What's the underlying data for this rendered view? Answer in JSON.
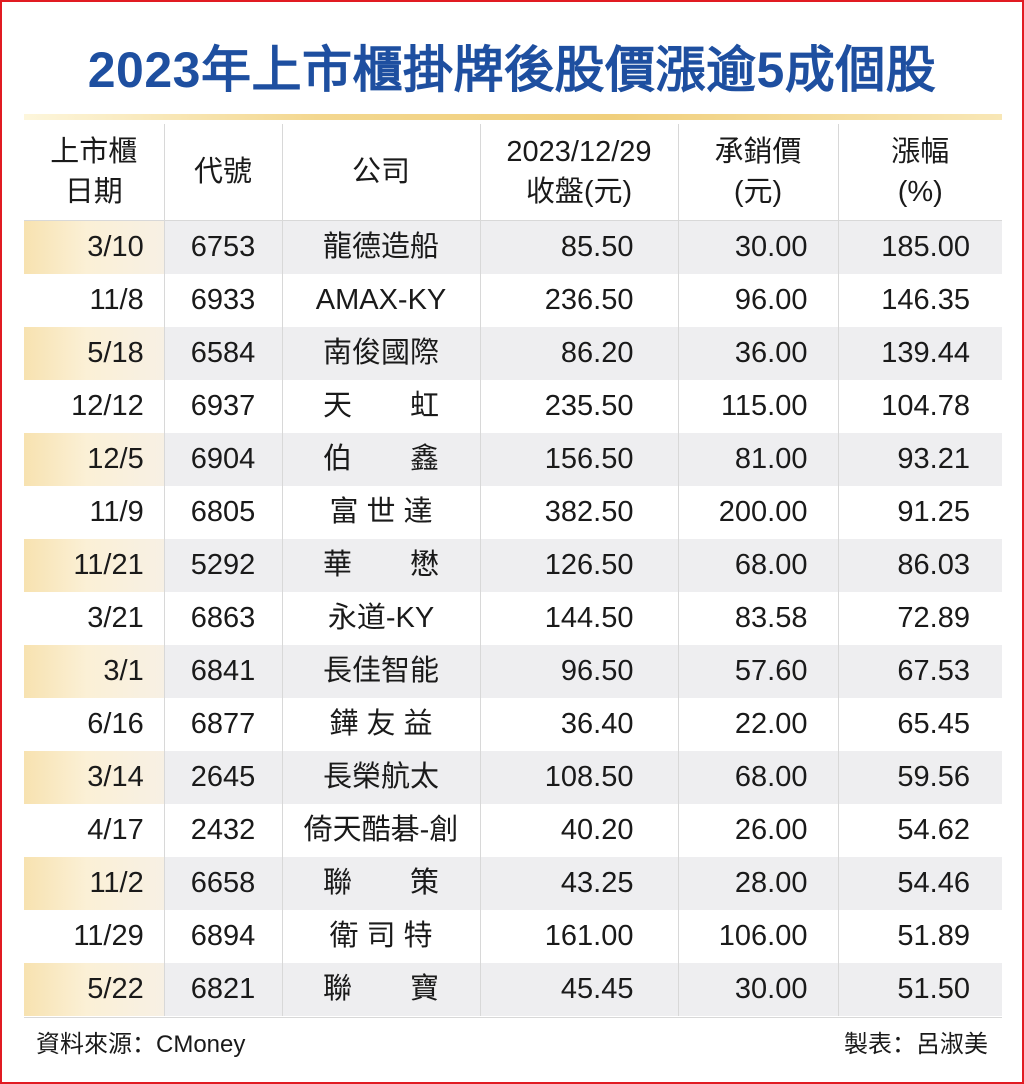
{
  "title": "2023年上市櫃掛牌後股價漲逾5成個股",
  "headers": {
    "date": [
      "上市櫃",
      "日期"
    ],
    "code": [
      "代號"
    ],
    "company": [
      "公司"
    ],
    "close": [
      "2023/12/29",
      "收盤(元)"
    ],
    "underwriting": [
      "承銷價",
      "(元)"
    ],
    "change": [
      "漲幅",
      "(%)"
    ]
  },
  "source": "資料來源：CMoney",
  "maker": "製表：呂淑美",
  "colors": {
    "title": "#1e4fa0",
    "frame": "#e11b22",
    "row_shade": "#eeeef0",
    "date_shade": "#f7e2b0"
  },
  "chart_data": {
    "type": "table",
    "title": "2023年上市櫃掛牌後股價漲逾5成個股",
    "columns": [
      "上市櫃日期",
      "代號",
      "公司",
      "2023/12/29收盤(元)",
      "承銷價(元)",
      "漲幅(%)"
    ],
    "rows": [
      {
        "date": "3/10",
        "code": "6753",
        "company": "龍德造船",
        "close": "85.50",
        "underwriting": "30.00",
        "change": "185.00"
      },
      {
        "date": "11/8",
        "code": "6933",
        "company": "AMAX-KY",
        "close": "236.50",
        "underwriting": "96.00",
        "change": "146.35"
      },
      {
        "date": "5/18",
        "code": "6584",
        "company": "南俊國際",
        "close": "86.20",
        "underwriting": "36.00",
        "change": "139.44"
      },
      {
        "date": "12/12",
        "code": "6937",
        "company": "天　　虹",
        "close": "235.50",
        "underwriting": "115.00",
        "change": "104.78"
      },
      {
        "date": "12/5",
        "code": "6904",
        "company": "伯　　鑫",
        "close": "156.50",
        "underwriting": "81.00",
        "change": "93.21"
      },
      {
        "date": "11/9",
        "code": "6805",
        "company": "富 世 達",
        "close": "382.50",
        "underwriting": "200.00",
        "change": "91.25"
      },
      {
        "date": "11/21",
        "code": "5292",
        "company": "華　　懋",
        "close": "126.50",
        "underwriting": "68.00",
        "change": "86.03"
      },
      {
        "date": "3/21",
        "code": "6863",
        "company": "永道-KY",
        "close": "144.50",
        "underwriting": "83.58",
        "change": "72.89"
      },
      {
        "date": "3/1",
        "code": "6841",
        "company": "長佳智能",
        "close": "96.50",
        "underwriting": "57.60",
        "change": "67.53"
      },
      {
        "date": "6/16",
        "code": "6877",
        "company": "鏵 友 益",
        "close": "36.40",
        "underwriting": "22.00",
        "change": "65.45"
      },
      {
        "date": "3/14",
        "code": "2645",
        "company": "長榮航太",
        "close": "108.50",
        "underwriting": "68.00",
        "change": "59.56"
      },
      {
        "date": "4/17",
        "code": "2432",
        "company": "倚天酷碁-創",
        "close": "40.20",
        "underwriting": "26.00",
        "change": "54.62"
      },
      {
        "date": "11/2",
        "code": "6658",
        "company": "聯　　策",
        "close": "43.25",
        "underwriting": "28.00",
        "change": "54.46"
      },
      {
        "date": "11/29",
        "code": "6894",
        "company": "衛 司 特",
        "close": "161.00",
        "underwriting": "106.00",
        "change": "51.89"
      },
      {
        "date": "5/22",
        "code": "6821",
        "company": "聯　　寶",
        "close": "45.45",
        "underwriting": "30.00",
        "change": "51.50"
      }
    ]
  }
}
